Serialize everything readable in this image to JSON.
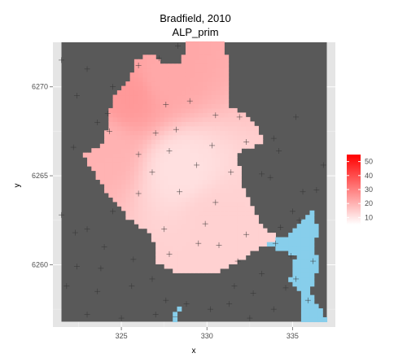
{
  "chart_data": {
    "type": "heatmap",
    "title": "Bradfield, 2010",
    "subtitle": "ALP_prim",
    "xlabel": "x",
    "ylabel": "y",
    "xlim": [
      321,
      337.5
    ],
    "ylim": [
      6256.5,
      6272.5
    ],
    "x_ticks": [
      "325",
      "330",
      "335"
    ],
    "y_ticks": [
      "6260",
      "6265",
      "6270"
    ],
    "grid": true,
    "legend_position": "right",
    "colors": {
      "panel_background": "#e5e5e5",
      "outside_fill": "#595959",
      "water_fill": "#87ceeb",
      "low": "#ffffff",
      "high": "#ff0000",
      "point_marker": "#333333"
    },
    "legend": {
      "min": 5,
      "max": 55,
      "tick_labels": [
        "10",
        "20",
        "30",
        "40",
        "50"
      ]
    },
    "region_values": {
      "min_value": 10,
      "max_value": 25,
      "hotspots": [
        {
          "x": 325.5,
          "y": 6269.5,
          "value": 25
        },
        {
          "x": 327.5,
          "y": 6270.5,
          "value": 22
        },
        {
          "x": 324.0,
          "y": 6266.5,
          "value": 20
        },
        {
          "x": 330.5,
          "y": 6262.5,
          "value": 14
        },
        {
          "x": 328.5,
          "y": 6265.5,
          "value": 11
        }
      ]
    },
    "points": [
      [
        321.5,
        6271.5
      ],
      [
        323.0,
        6271.0
      ],
      [
        328.3,
        6272.3
      ],
      [
        327.2,
        6271.6
      ],
      [
        326.0,
        6271.2
      ],
      [
        324.5,
        6270.0
      ],
      [
        324.2,
        6268.5
      ],
      [
        323.6,
        6268.0
      ],
      [
        322.4,
        6269.5
      ],
      [
        324.3,
        6267.5
      ],
      [
        329.0,
        6269.2
      ],
      [
        327.6,
        6269.0
      ],
      [
        330.5,
        6268.4
      ],
      [
        331.9,
        6268.3
      ],
      [
        328.2,
        6267.6
      ],
      [
        327.0,
        6267.4
      ],
      [
        332.3,
        6266.9
      ],
      [
        330.3,
        6266.7
      ],
      [
        326.0,
        6266.2
      ],
      [
        327.8,
        6266.4
      ],
      [
        322.2,
        6266.6
      ],
      [
        326.8,
        6265.2
      ],
      [
        329.4,
        6265.6
      ],
      [
        334.2,
        6266.4
      ],
      [
        335.2,
        6268.3
      ],
      [
        333.9,
        6267.1
      ],
      [
        331.4,
        6265.2
      ],
      [
        326.0,
        6264.0
      ],
      [
        328.4,
        6264.1
      ],
      [
        330.5,
        6263.5
      ],
      [
        333.7,
        6264.9
      ],
      [
        335.6,
        6264.1
      ],
      [
        336.4,
        6264.2
      ],
      [
        329.9,
        6262.3
      ],
      [
        327.5,
        6262.0
      ],
      [
        329.5,
        6261.2
      ],
      [
        330.7,
        6261.1
      ],
      [
        332.3,
        6261.7
      ],
      [
        327.8,
        6260.6
      ],
      [
        331.8,
        6260.2
      ],
      [
        334.0,
        6261.2
      ],
      [
        333.2,
        6259.5
      ],
      [
        335.4,
        6262.5
      ],
      [
        334.3,
        6262.1
      ],
      [
        334.9,
        6260.5
      ],
      [
        323.0,
        6262.0
      ],
      [
        324.0,
        6261.0
      ],
      [
        321.5,
        6262.8
      ],
      [
        322.3,
        6261.8
      ],
      [
        324.5,
        6263.0
      ],
      [
        323.8,
        6259.8
      ],
      [
        322.4,
        6259.9
      ],
      [
        321.8,
        6258.8
      ],
      [
        323.6,
        6258.5
      ],
      [
        325.6,
        6258.8
      ],
      [
        325.7,
        6260.3
      ],
      [
        326.8,
        6259.2
      ],
      [
        327.6,
        6258.0
      ],
      [
        328.8,
        6257.8
      ],
      [
        330.2,
        6257.5
      ],
      [
        331.6,
        6258.8
      ],
      [
        331.3,
        6257.8
      ],
      [
        332.7,
        6258.4
      ],
      [
        334.6,
        6258.7
      ],
      [
        333.9,
        6257.5
      ],
      [
        335.2,
        6259.2
      ],
      [
        323.0,
        6257.2
      ],
      [
        325.0,
        6257.0
      ],
      [
        327.0,
        6257.2
      ],
      [
        332.5,
        6257.0
      ],
      [
        336.2,
        6260.2
      ],
      [
        335.9,
        6258.0
      ],
      [
        333.2,
        6265.1
      ],
      [
        335.0,
        6263.0
      ],
      [
        336.8,
        6265.6
      ]
    ]
  }
}
